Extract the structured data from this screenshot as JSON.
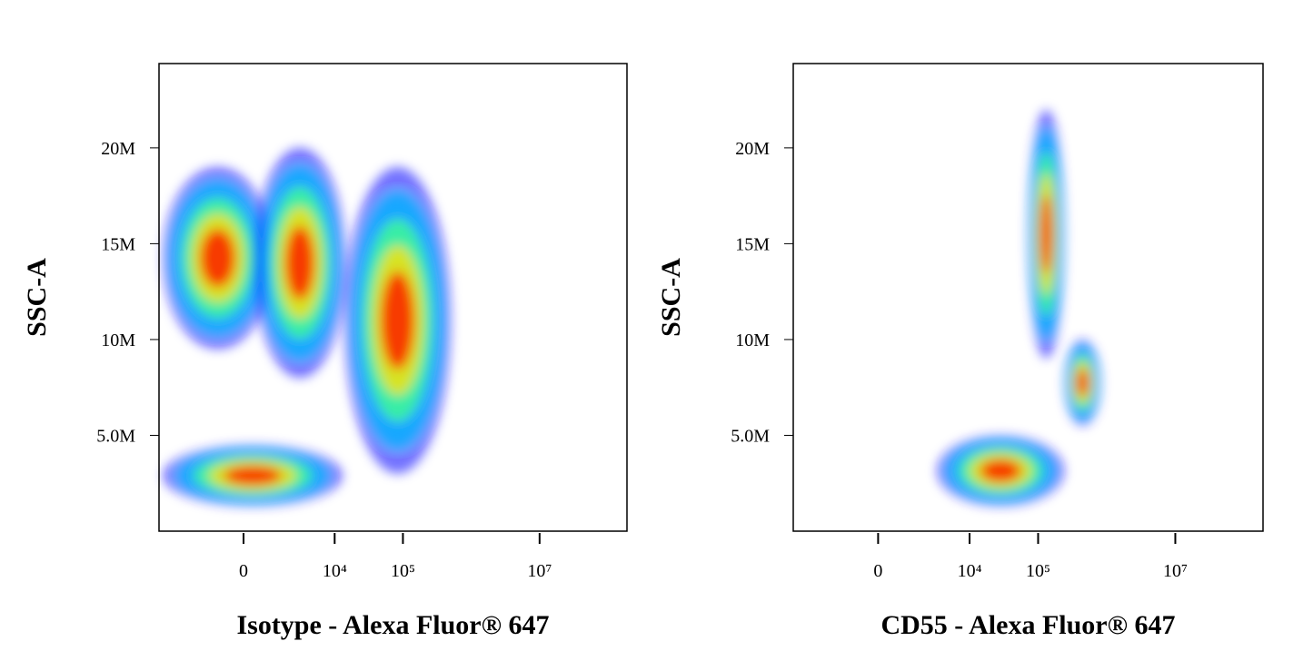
{
  "chart_data": [
    {
      "type": "density",
      "x_label": "Isotype - Alexa Fluor® 647",
      "y_label": "SSC-A",
      "xscale": "asinh",
      "xlim": [
        -8000,
        190000000
      ],
      "ylim": [
        0,
        24400000
      ],
      "xticks": [
        0,
        {
          "value": 10000,
          "label": "10⁴"
        },
        {
          "value": 100000,
          "label": "10⁵"
        },
        {
          "value": 10000000,
          "label": "10⁷"
        }
      ],
      "yticks": [
        {
          "value": 5000000,
          "label": "5.0M"
        },
        {
          "value": 10000000,
          "label": "10M"
        },
        {
          "value": 15000000,
          "label": "15M"
        },
        {
          "value": 20000000,
          "label": "20M"
        }
      ],
      "colormap": [
        "#0000ff",
        "#00b4ff",
        "#40ff90",
        "#ffe000",
        "#ff1000"
      ],
      "populations": [
        {
          "x": [
            -7000,
            1060
          ],
          "y": [
            9500000,
            19000000
          ]
        },
        {
          "x": [
            340,
            14500
          ],
          "y": [
            8000000,
            20000000
          ]
        },
        {
          "x": [
            -7000,
            13000
          ],
          "y": [
            1300000,
            4500000
          ]
        },
        {
          "x": [
            14000,
            500000
          ],
          "y": [
            3000000,
            19000000
          ]
        }
      ]
    },
    {
      "type": "density",
      "x_label": "CD55 - Alexa Fluor® 647",
      "y_label": "SSC-A",
      "xscale": "asinh",
      "xlim": [
        -8000,
        190000000
      ],
      "ylim": [
        0,
        24400000
      ],
      "xticks": [
        0,
        {
          "value": 10000,
          "label": "10⁴"
        },
        {
          "value": 100000,
          "label": "10⁵"
        },
        {
          "value": 10000000,
          "label": "10⁷"
        }
      ],
      "yticks": [
        {
          "value": 5000000,
          "label": "5.0M"
        },
        {
          "value": 10000000,
          "label": "10M"
        },
        {
          "value": 15000000,
          "label": "15M"
        },
        {
          "value": 20000000,
          "label": "20M"
        }
      ],
      "colormap": [
        "#0000ff",
        "#00b4ff",
        "#40ff90",
        "#ffe000",
        "#ff1000"
      ],
      "populations": [
        {
          "x": [
            71000,
            243000
          ],
          "y": [
            9000000,
            22000000
          ]
        },
        {
          "x": [
            240000,
            824000
          ],
          "y": [
            5500000,
            10000000
          ]
        },
        {
          "x": [
            3300,
            240000
          ],
          "y": [
            1300000,
            5000000
          ]
        }
      ]
    }
  ]
}
